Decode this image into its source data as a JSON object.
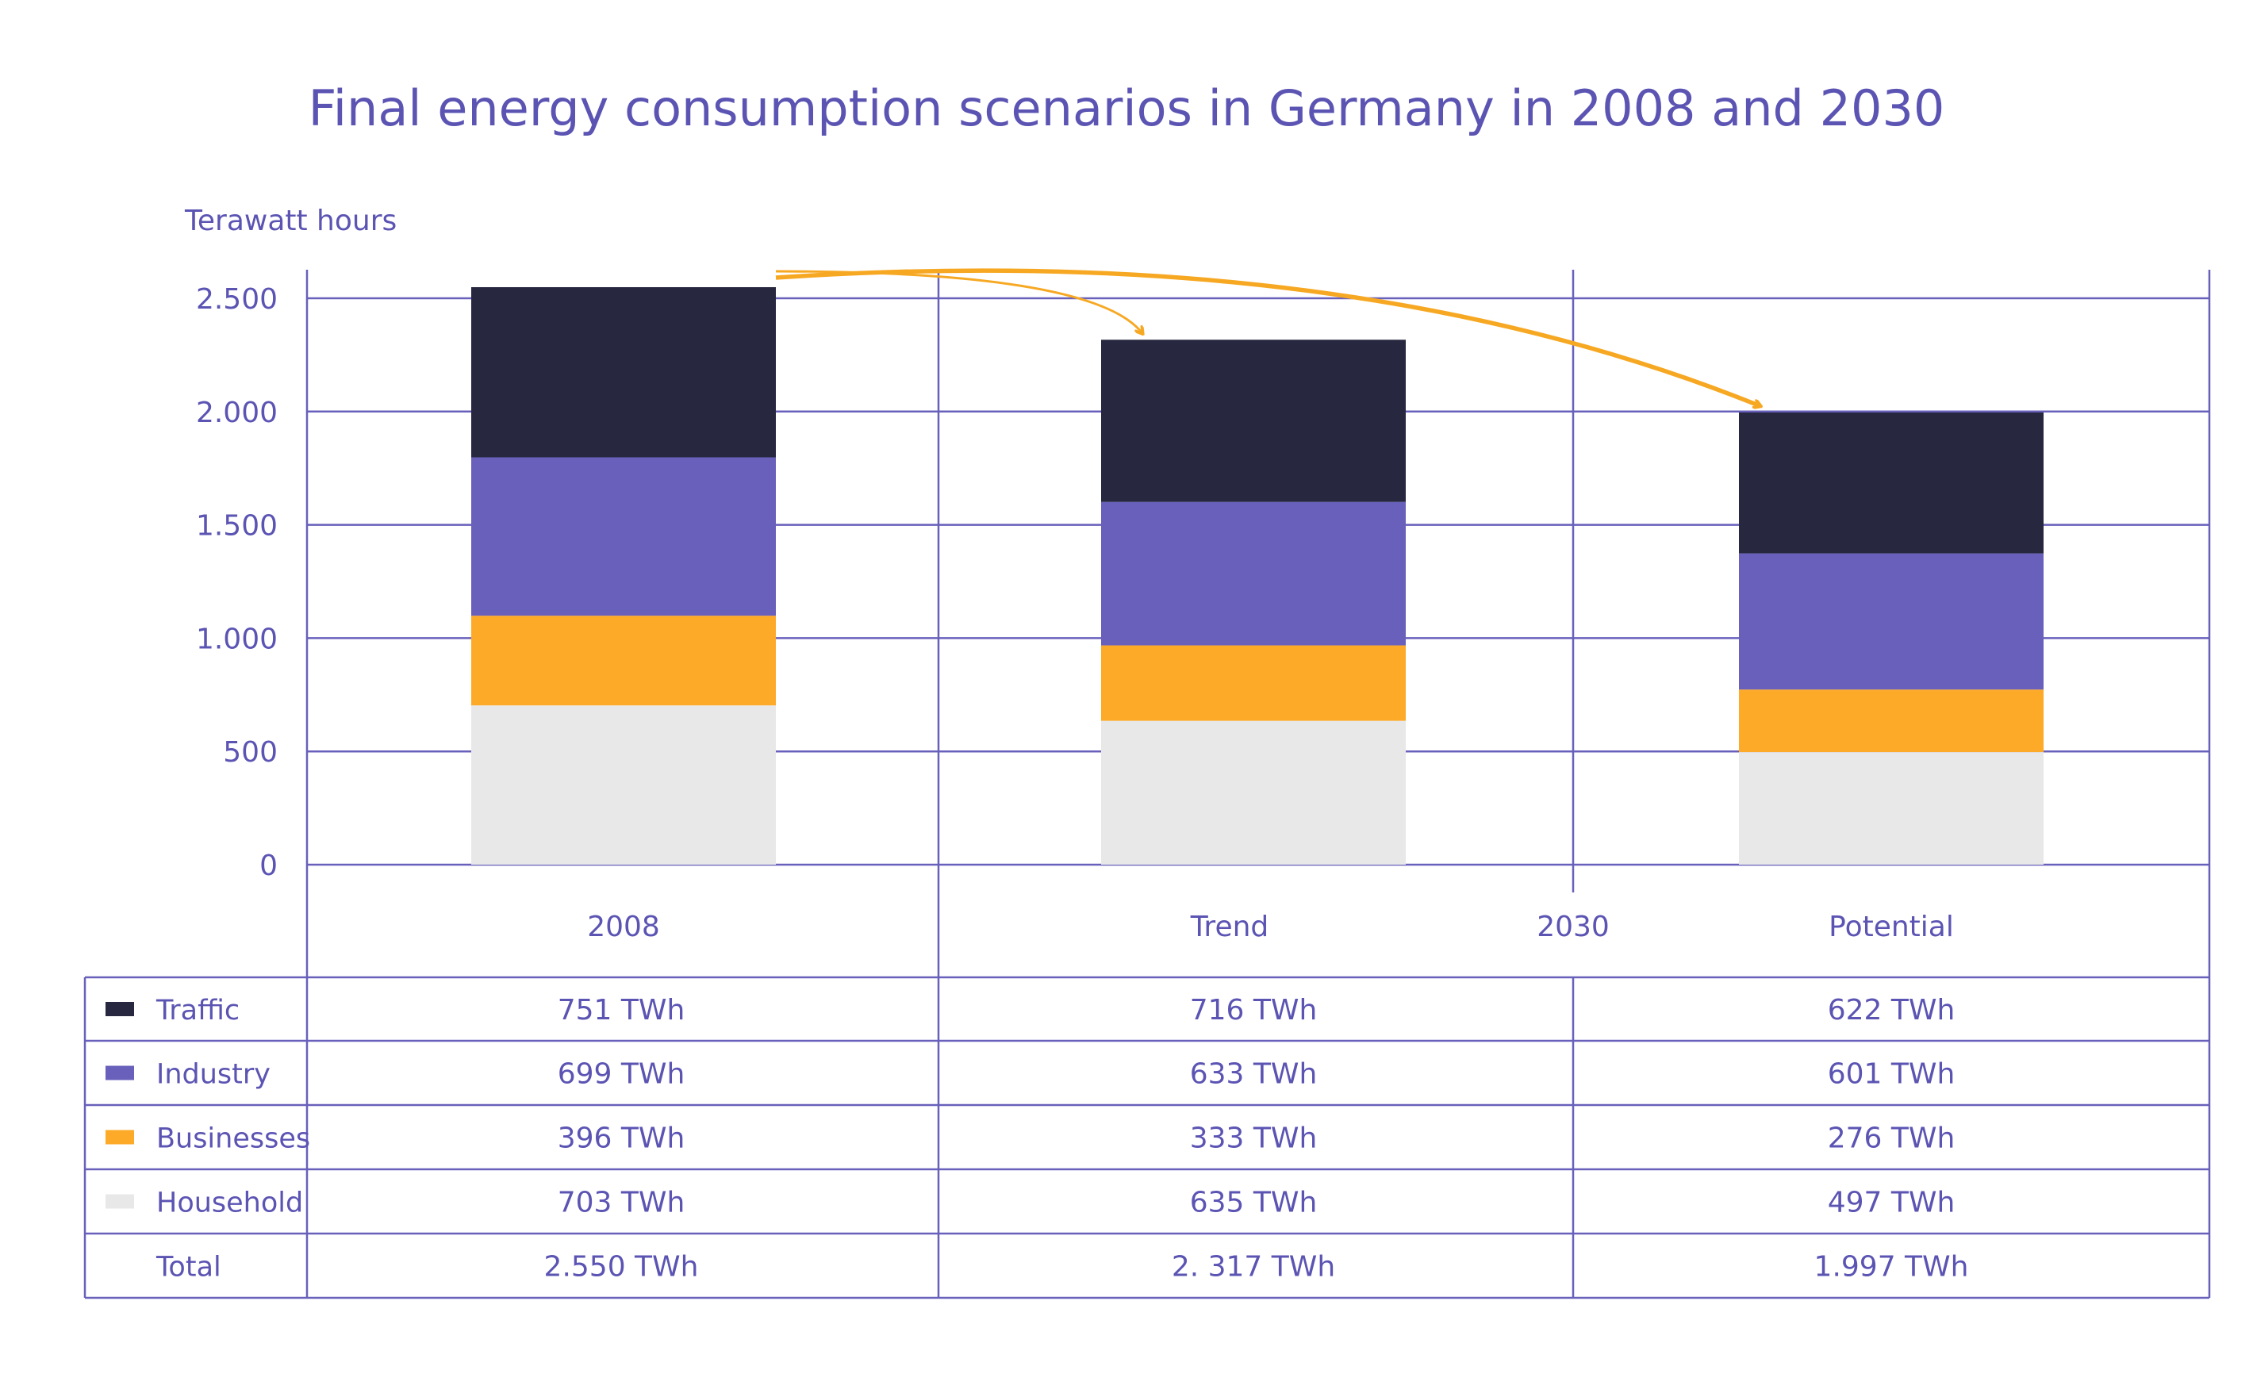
{
  "chart_data": {
    "type": "bar",
    "stacked": true,
    "title": "Final energy consumption scenarios in Germany in 2008 and 2030",
    "ylabel": "Terawatt hours",
    "ylim": [
      0,
      2500
    ],
    "yticks": [
      {
        "value": 0,
        "label": "0"
      },
      {
        "value": 500,
        "label": "500"
      },
      {
        "value": 1000,
        "label": "1.000"
      },
      {
        "value": 1500,
        "label": "1.500"
      },
      {
        "value": 2000,
        "label": "2.000"
      },
      {
        "value": 2500,
        "label": "2.500"
      }
    ],
    "grid": true,
    "categories": [
      "2008",
      "Trend",
      "Potential"
    ],
    "group_label": "2030",
    "series": [
      {
        "name": "Household",
        "color": "#e8e8e8",
        "values": [
          703,
          635,
          497
        ],
        "labels": [
          "703 TWh",
          "635 TWh",
          "497 TWh"
        ]
      },
      {
        "name": "Businesses",
        "color": "#fdaa29",
        "values": [
          396,
          333,
          276
        ],
        "labels": [
          "396 TWh",
          "333 TWh",
          "276 TWh"
        ]
      },
      {
        "name": "Industry",
        "color": "#6860bb",
        "values": [
          699,
          633,
          601
        ],
        "labels": [
          "699 TWh",
          "633 TWh",
          "601 TWh"
        ]
      },
      {
        "name": "Traffic",
        "color": "#272840",
        "values": [
          751,
          716,
          622
        ],
        "labels": [
          "751 TWh",
          "716 TWh",
          "622 TWh"
        ]
      }
    ],
    "total": {
      "name": "Total",
      "labels": [
        "2.550 TWh",
        "2. 317 TWh",
        "1.997 TWh"
      ]
    },
    "table_row_order": [
      "Traffic",
      "Industry",
      "Businesses",
      "Household"
    ],
    "annotations": [
      "arrow from 2008 to Trend",
      "arrow from 2008 to Potential"
    ],
    "colors": {
      "text": "#5b54b3",
      "grid": "#6860bb",
      "arrow": "#f7a823"
    }
  }
}
